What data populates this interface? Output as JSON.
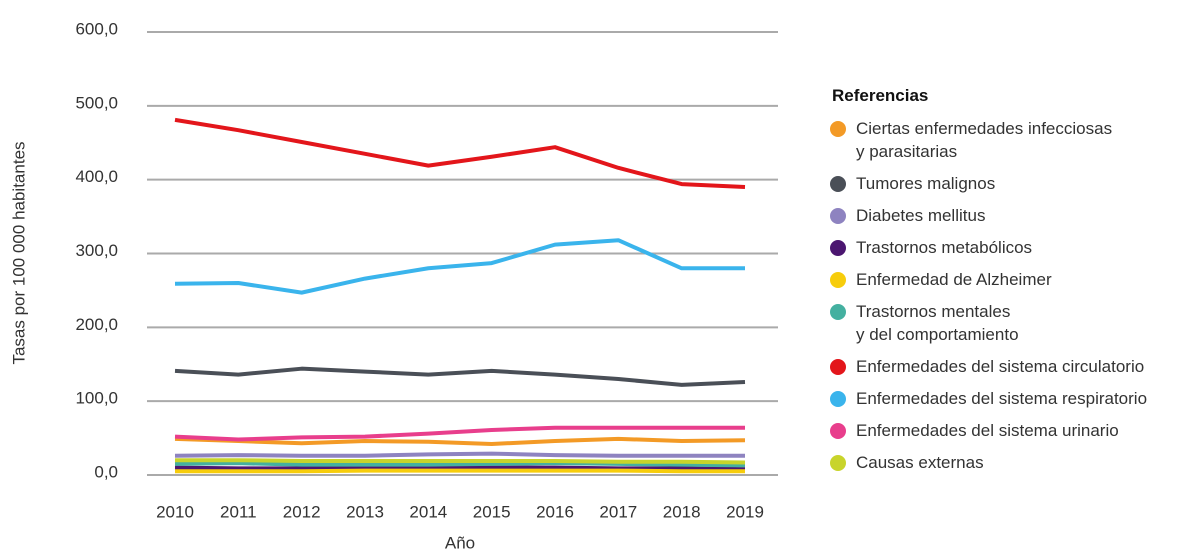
{
  "chart_data": {
    "type": "line",
    "ylabel": "Tasas por 100 000 habitantes",
    "xlabel": "Año",
    "legend_title": "Referencias",
    "legend": "right",
    "grid": true,
    "categories": [
      "2010",
      "2011",
      "2012",
      "2013",
      "2014",
      "2015",
      "2016",
      "2017",
      "2018",
      "2019"
    ],
    "ylim": [
      0,
      600
    ],
    "yticks": [
      {
        "value": 0,
        "label": "0,0"
      },
      {
        "value": 100,
        "label": "100,0"
      },
      {
        "value": 200,
        "label": "200,0"
      },
      {
        "value": 300,
        "label": "300,0"
      },
      {
        "value": 400,
        "label": "400,0"
      },
      {
        "value": 500,
        "label": "500,0"
      },
      {
        "value": 600,
        "label": "600,0"
      }
    ],
    "series": [
      {
        "name": "Ciertas enfermedades infecciosas\ny parasitarias",
        "color": "#f39a26",
        "values": [
          49,
          46,
          43,
          46,
          45,
          42,
          46,
          49,
          46,
          47
        ]
      },
      {
        "name": "Tumores malignos",
        "color": "#4a4f57",
        "values": [
          141,
          136,
          144,
          140,
          136,
          141,
          136,
          130,
          122,
          126
        ]
      },
      {
        "name": "Diabetes mellitus",
        "color": "#8e83c0",
        "values": [
          26,
          27,
          26,
          26,
          28,
          29,
          27,
          26,
          26,
          26
        ]
      },
      {
        "name": "Trastornos metabólicos",
        "color": "#4b1670",
        "values": [
          10,
          9,
          9,
          10,
          10,
          10,
          10,
          9,
          9,
          8
        ]
      },
      {
        "name": "Enfermedad de Alzheimer",
        "color": "#f7cd0c",
        "values": [
          5,
          5,
          5,
          6,
          6,
          6,
          6,
          6,
          5,
          5
        ]
      },
      {
        "name": "Trastornos mentales\ny del comportamiento",
        "color": "#44b0a0",
        "values": [
          15,
          16,
          14,
          14,
          14,
          15,
          16,
          15,
          14,
          13
        ]
      },
      {
        "name": "Enfermedades del sistema circulatorio",
        "color": "#e3161b",
        "values": [
          481,
          467,
          451,
          435,
          419,
          431,
          444,
          416,
          394,
          390
        ]
      },
      {
        "name": "Enfermedades del sistema respiratorio",
        "color": "#3ab4ec",
        "values": [
          259,
          260,
          247,
          266,
          280,
          287,
          312,
          318,
          280,
          280
        ]
      },
      {
        "name": "Enfermedades del sistema urinario",
        "color": "#e83e8c",
        "values": [
          52,
          48,
          51,
          52,
          56,
          61,
          64,
          64,
          64,
          64
        ]
      },
      {
        "name": "Causas externas",
        "color": "#c8d42b",
        "values": [
          20,
          20,
          19,
          19,
          19,
          19,
          19,
          18,
          18,
          17
        ]
      }
    ]
  }
}
